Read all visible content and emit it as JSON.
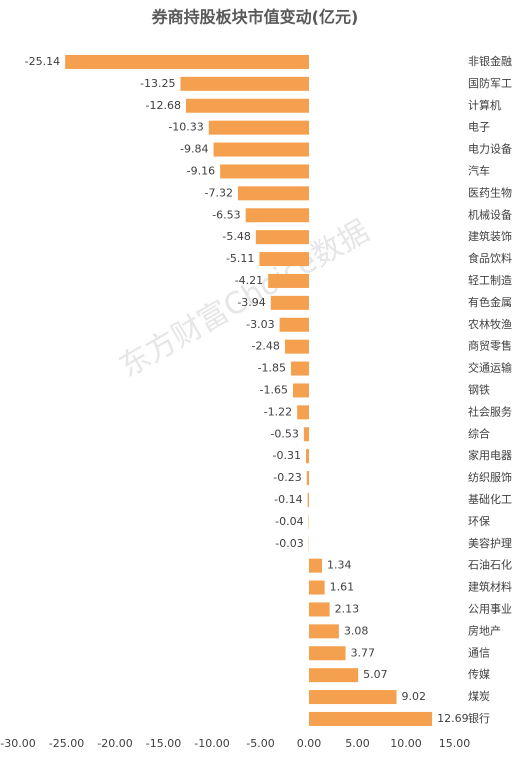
{
  "chart_data": {
    "type": "hbar",
    "title": "券商持股板块市值变动(亿元)",
    "watermark": "东方财富Choice数据",
    "categories": [
      "非银金融",
      "国防军工",
      "计算机",
      "电子",
      "电力设备",
      "汽车",
      "医药生物",
      "机械设备",
      "建筑装饰",
      "食品饮料",
      "轻工制造",
      "有色金属",
      "农林牧渔",
      "商贸零售",
      "交通运输",
      "钢铁",
      "社会服务",
      "综合",
      "家用电器",
      "纺织服饰",
      "基础化工",
      "环保",
      "美容护理",
      "石油石化",
      "建筑材料",
      "公用事业",
      "房地产",
      "通信",
      "传媒",
      "煤炭",
      "银行"
    ],
    "values": [
      -25.14,
      -13.25,
      -12.68,
      -10.33,
      -9.84,
      -9.16,
      -7.32,
      -6.53,
      -5.48,
      -5.11,
      -4.21,
      -3.94,
      -3.03,
      -2.48,
      -1.85,
      -1.65,
      -1.22,
      -0.53,
      -0.31,
      -0.23,
      -0.14,
      -0.04,
      -0.03,
      1.34,
      1.61,
      2.13,
      3.08,
      3.77,
      5.07,
      9.02,
      12.69
    ],
    "color": "#f5a04f",
    "xlim": [
      -30,
      15
    ],
    "xticks": [
      {
        "value": -30,
        "label": "-30.00"
      },
      {
        "value": -25,
        "label": "-25.00"
      },
      {
        "value": -20,
        "label": "-20.00"
      },
      {
        "value": -15,
        "label": "-15.00"
      },
      {
        "value": -10,
        "label": "-10.00"
      },
      {
        "value": -5,
        "label": "-5.00"
      },
      {
        "value": 0,
        "label": "0.00"
      },
      {
        "value": 5,
        "label": "5.00"
      },
      {
        "value": 10,
        "label": "10.00"
      },
      {
        "value": 15,
        "label": "15.00"
      }
    ],
    "grid": false
  }
}
